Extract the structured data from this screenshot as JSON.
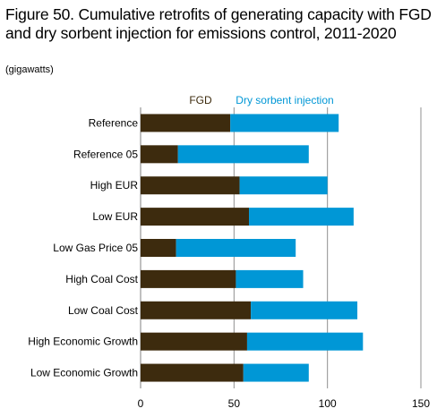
{
  "chart_data": {
    "type": "bar",
    "orientation": "horizontal",
    "stacked": true,
    "title": "Figure 50. Cumulative retrofits of generating capacity with FGD and dry sorbent injection for emissions control, 2011-2020",
    "subtitle": "(gigawatts)",
    "xlabel": "",
    "ylabel": "",
    "xlim": [
      0,
      150
    ],
    "xticks": [
      "0",
      "50",
      "100",
      "150"
    ],
    "grid": "vertical",
    "legend_placement": "top",
    "categories": [
      "Reference",
      "Reference 05",
      "High EUR",
      "Low EUR",
      "Low Gas Price 05",
      "High Coal Cost",
      "Low Coal Cost",
      "High Economic Growth",
      "Low Economic Growth"
    ],
    "series": [
      {
        "name": "FGD",
        "color": "#3d2b0e",
        "values": [
          48,
          20,
          53,
          58,
          19,
          51,
          59,
          57,
          55
        ]
      },
      {
        "name": "Dry sorbent injection",
        "color": "#0097d6",
        "values": [
          58,
          70,
          47,
          56,
          64,
          36,
          57,
          62,
          35
        ]
      }
    ]
  }
}
